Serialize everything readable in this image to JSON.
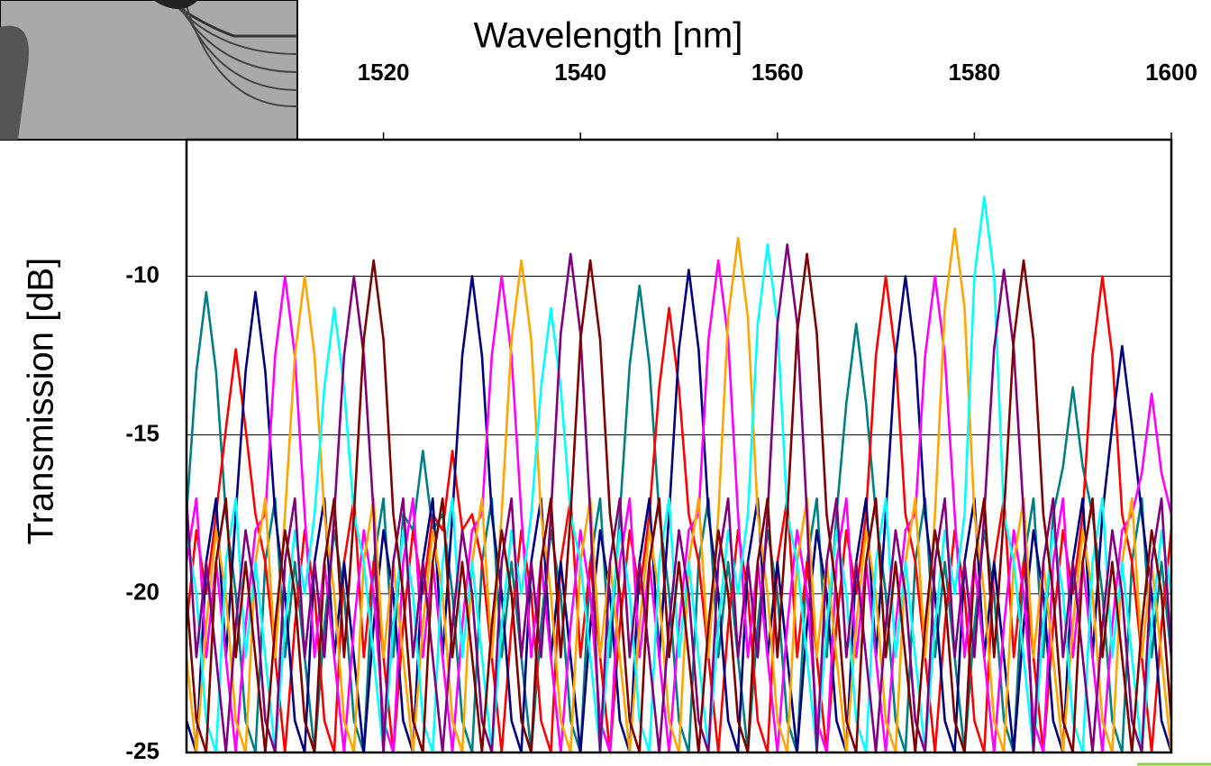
{
  "chart_data": {
    "type": "line",
    "title": "Wavelength [nm]",
    "y_label": "Transmission [dB]",
    "xlim": [
      1500,
      1600
    ],
    "xticks": [
      1520,
      1540,
      1560,
      1580,
      1600
    ],
    "ylim": [
      -25,
      -5.7
    ],
    "yticks": [
      -25,
      -20,
      -15,
      -10
    ],
    "grid": true,
    "x": [
      1500,
      1501,
      1502,
      1503,
      1504,
      1505,
      1506,
      1507,
      1508,
      1509,
      1510,
      1511,
      1512,
      1513,
      1514,
      1515,
      1516,
      1517,
      1518,
      1519,
      1520,
      1521,
      1522,
      1523,
      1524,
      1525,
      1526,
      1527,
      1528,
      1529,
      1530,
      1531,
      1532,
      1533,
      1534,
      1535,
      1536,
      1537,
      1538,
      1539,
      1540,
      1541,
      1542,
      1543,
      1544,
      1545,
      1546,
      1547,
      1548,
      1549,
      1550,
      1551,
      1552,
      1553,
      1554,
      1555,
      1556,
      1557,
      1558,
      1559,
      1560,
      1561,
      1562,
      1563,
      1564,
      1565,
      1566,
      1567,
      1568,
      1569,
      1570,
      1571,
      1572,
      1573,
      1574,
      1575,
      1576,
      1577,
      1578,
      1579,
      1580,
      1581,
      1582,
      1583,
      1584,
      1585,
      1586,
      1587,
      1588,
      1589,
      1590,
      1591,
      1592,
      1593,
      1594,
      1595,
      1596,
      1597,
      1598,
      1599,
      1600
    ],
    "series": [
      {
        "color": "#008080",
        "values": [
          -17.5,
          -13,
          -10.5,
          -13,
          -17.5,
          -20,
          -24,
          -25,
          -19,
          -17,
          -22,
          -19,
          -22,
          -25,
          -21,
          -18,
          -20,
          -24,
          -25,
          -19,
          -17,
          -22,
          -17.5,
          -18,
          -15.5,
          -18,
          -17.5,
          -20,
          -24,
          -25,
          -19,
          -17,
          -22,
          -19,
          -22,
          -25,
          -21,
          -18,
          -20,
          -24,
          -25,
          -19,
          -17,
          -22,
          -17.5,
          -12.8,
          -10.3,
          -12.8,
          -17.5,
          -20,
          -24,
          -25,
          -19,
          -17,
          -22,
          -19,
          -22,
          -25,
          -21,
          -18,
          -20,
          -24,
          -25,
          -19,
          -17,
          -22,
          -17.5,
          -14,
          -11.5,
          -14,
          -17.5,
          -20,
          -24,
          -25,
          -19,
          -17,
          -22,
          -19,
          -22,
          -25,
          -21,
          -18,
          -20,
          -24,
          -25,
          -19,
          -17,
          -22,
          -17.5,
          -16,
          -13.5,
          -16,
          -17.5,
          -20,
          -24,
          -25,
          -19,
          -17,
          -22,
          -19,
          -22
        ]
      },
      {
        "color": "#ff0000",
        "values": [
          -21,
          -18,
          -20,
          -17.5,
          -14.8,
          -12.3,
          -14.8,
          -17.5,
          -19,
          -22,
          -25,
          -21,
          -18,
          -20,
          -24,
          -25,
          -19,
          -17,
          -22,
          -19,
          -22,
          -25,
          -21,
          -18,
          -20,
          -17.5,
          -18,
          -15.5,
          -18,
          -17.5,
          -19,
          -22,
          -25,
          -21,
          -18,
          -20,
          -24,
          -25,
          -19,
          -17,
          -22,
          -19,
          -22,
          -25,
          -21,
          -18,
          -20,
          -17.5,
          -13.5,
          -11,
          -13.5,
          -17.5,
          -19,
          -22,
          -25,
          -21,
          -18,
          -20,
          -24,
          -25,
          -19,
          -17,
          -22,
          -19,
          -22,
          -25,
          -21,
          -18,
          -20,
          -17.5,
          -12.5,
          -10,
          -12.5,
          -17.5,
          -19,
          -22,
          -25,
          -21,
          -18,
          -20,
          -24,
          -25,
          -19,
          -17,
          -22,
          -19,
          -22,
          -25,
          -21,
          -18,
          -20,
          -17.5,
          -12.5,
          -10,
          -12.5,
          -17.5,
          -19,
          -22,
          -25,
          -21,
          -18
        ]
      },
      {
        "color": "#000080",
        "values": [
          -24,
          -25,
          -19,
          -17,
          -22,
          -17.5,
          -13,
          -10.5,
          -13,
          -17.5,
          -20,
          -24,
          -25,
          -19,
          -17,
          -22,
          -19,
          -22,
          -25,
          -21,
          -18,
          -20,
          -24,
          -25,
          -19,
          -17,
          -22,
          -17.5,
          -12.5,
          -10,
          -12.5,
          -17.5,
          -20,
          -24,
          -25,
          -19,
          -17,
          -22,
          -19,
          -22,
          -25,
          -21,
          -18,
          -20,
          -24,
          -25,
          -19,
          -17,
          -22,
          -17.5,
          -12.3,
          -9.8,
          -12.3,
          -17.5,
          -20,
          -24,
          -25,
          -19,
          -17,
          -22,
          -19,
          -22,
          -25,
          -21,
          -18,
          -20,
          -24,
          -25,
          -19,
          -17,
          -22,
          -17.5,
          -12.5,
          -10,
          -12.5,
          -17.5,
          -20,
          -24,
          -25,
          -19,
          -17,
          -22,
          -19,
          -22,
          -25,
          -21,
          -18,
          -20,
          -24,
          -25,
          -19,
          -17,
          -22,
          -17.5,
          -14.7,
          -12.2,
          -14.7,
          -17.5,
          -20,
          -24,
          -25
        ]
      },
      {
        "color": "#ff00ff",
        "values": [
          -19,
          -17,
          -22,
          -19,
          -22,
          -25,
          -21,
          -18,
          -17.5,
          -12.5,
          -10,
          -12.5,
          -17.5,
          -22,
          -19,
          -22,
          -25,
          -21,
          -18,
          -20,
          -24,
          -25,
          -19,
          -17,
          -22,
          -19,
          -22,
          -25,
          -21,
          -18,
          -17.5,
          -12.5,
          -10,
          -12.5,
          -17.5,
          -22,
          -19,
          -22,
          -25,
          -21,
          -18,
          -20,
          -24,
          -25,
          -19,
          -17,
          -22,
          -19,
          -22,
          -25,
          -21,
          -18,
          -17.5,
          -12,
          -9.5,
          -12,
          -17.5,
          -22,
          -19,
          -22,
          -25,
          -21,
          -18,
          -20,
          -24,
          -25,
          -19,
          -17,
          -22,
          -19,
          -22,
          -25,
          -21,
          -18,
          -17.5,
          -12.5,
          -10,
          -12.5,
          -17.5,
          -22,
          -19,
          -22,
          -25,
          -21,
          -18,
          -20,
          -24,
          -25,
          -19,
          -17,
          -22,
          -19,
          -22,
          -25,
          -21,
          -18,
          -17.5,
          -16.2,
          -13.7,
          -16.2,
          -17.5
        ]
      },
      {
        "color": "#ffa500",
        "values": [
          -22,
          -25,
          -21,
          -18,
          -20,
          -24,
          -25,
          -19,
          -17,
          -22,
          -17.5,
          -12.5,
          -10,
          -12.5,
          -17.5,
          -20,
          -24,
          -25,
          -19,
          -17,
          -22,
          -19,
          -22,
          -25,
          -21,
          -18,
          -20,
          -24,
          -25,
          -19,
          -17,
          -22,
          -17.5,
          -12,
          -9.5,
          -12,
          -17.5,
          -20,
          -24,
          -25,
          -19,
          -17,
          -22,
          -19,
          -22,
          -25,
          -21,
          -18,
          -20,
          -24,
          -25,
          -19,
          -17,
          -22,
          -17.5,
          -11.3,
          -8.8,
          -11.3,
          -17.5,
          -20,
          -24,
          -25,
          -19,
          -17,
          -22,
          -19,
          -22,
          -25,
          -21,
          -18,
          -20,
          -24,
          -25,
          -19,
          -17,
          -22,
          -17.5,
          -11,
          -8.5,
          -11,
          -17.5,
          -20,
          -24,
          -25,
          -19,
          -17,
          -22,
          -19,
          -22,
          -25,
          -21,
          -18,
          -20,
          -24,
          -25,
          -19,
          -17,
          -22,
          -19,
          -22,
          -25
        ]
      },
      {
        "color": "#00ffff",
        "values": [
          -18,
          -20,
          -24,
          -25,
          -19,
          -17,
          -22,
          -19,
          -22,
          -25,
          -21,
          -18,
          -20,
          -17.5,
          -13.5,
          -11,
          -13.5,
          -17.5,
          -19,
          -22,
          -25,
          -21,
          -18,
          -20,
          -24,
          -25,
          -19,
          -17,
          -22,
          -19,
          -22,
          -25,
          -21,
          -18,
          -20,
          -17.5,
          -13.5,
          -11,
          -13.5,
          -17.5,
          -19,
          -22,
          -25,
          -21,
          -18,
          -20,
          -24,
          -25,
          -19,
          -17,
          -22,
          -19,
          -22,
          -25,
          -21,
          -18,
          -20,
          -17.5,
          -11.5,
          -9,
          -11.5,
          -17.5,
          -19,
          -22,
          -25,
          -21,
          -18,
          -20,
          -24,
          -25,
          -19,
          -17,
          -22,
          -19,
          -22,
          -25,
          -21,
          -18,
          -20,
          -17.5,
          -10,
          -7.5,
          -10,
          -17.5,
          -19,
          -22,
          -25,
          -21,
          -18,
          -20,
          -24,
          -25,
          -19,
          -17,
          -22,
          -19,
          -22,
          -25,
          -21,
          -18,
          -20
        ]
      },
      {
        "color": "#800080",
        "values": [
          -17,
          -22,
          -19,
          -22,
          -25,
          -21,
          -18,
          -20,
          -24,
          -25,
          -19,
          -17,
          -22,
          -19,
          -22,
          -17.5,
          -12.5,
          -10,
          -12.5,
          -17.5,
          -25,
          -19,
          -17,
          -22,
          -19,
          -22,
          -25,
          -21,
          -18,
          -20,
          -24,
          -25,
          -19,
          -17,
          -22,
          -19,
          -22,
          -17.5,
          -11.8,
          -9.3,
          -11.8,
          -17.5,
          -25,
          -19,
          -17,
          -22,
          -19,
          -22,
          -25,
          -21,
          -18,
          -20,
          -24,
          -25,
          -19,
          -17,
          -22,
          -19,
          -22,
          -17.5,
          -11.5,
          -9,
          -11.5,
          -17.5,
          -25,
          -19,
          -17,
          -22,
          -19,
          -22,
          -25,
          -21,
          -18,
          -20,
          -24,
          -25,
          -19,
          -17,
          -22,
          -19,
          -22,
          -17.5,
          -12.3,
          -9.8,
          -12.3,
          -17.5,
          -25,
          -19,
          -17,
          -22,
          -19,
          -22,
          -25,
          -21,
          -18,
          -20,
          -24,
          -25,
          -19,
          -17,
          -22
        ]
      },
      {
        "color": "#800000",
        "values": [
          -20,
          -24,
          -25,
          -19,
          -17,
          -22,
          -19,
          -22,
          -25,
          -21,
          -18,
          -20,
          -24,
          -25,
          -19,
          -17,
          -22,
          -17.5,
          -12,
          -9.5,
          -12,
          -17.5,
          -20,
          -24,
          -25,
          -19,
          -17,
          -22,
          -19,
          -22,
          -25,
          -21,
          -18,
          -20,
          -24,
          -25,
          -19,
          -17,
          -22,
          -17.5,
          -12,
          -9.5,
          -12,
          -17.5,
          -20,
          -24,
          -25,
          -19,
          -17,
          -22,
          -19,
          -22,
          -25,
          -21,
          -18,
          -20,
          -24,
          -25,
          -19,
          -17,
          -22,
          -17.5,
          -11.8,
          -9.3,
          -11.8,
          -17.5,
          -20,
          -24,
          -25,
          -19,
          -17,
          -22,
          -19,
          -22,
          -25,
          -21,
          -18,
          -20,
          -24,
          -25,
          -19,
          -17,
          -22,
          -17.5,
          -12,
          -9.5,
          -12,
          -17.5,
          -20,
          -24,
          -25,
          -19,
          -17,
          -22,
          -19,
          -22,
          -25,
          -21,
          -18,
          -20,
          -24
        ]
      }
    ]
  }
}
